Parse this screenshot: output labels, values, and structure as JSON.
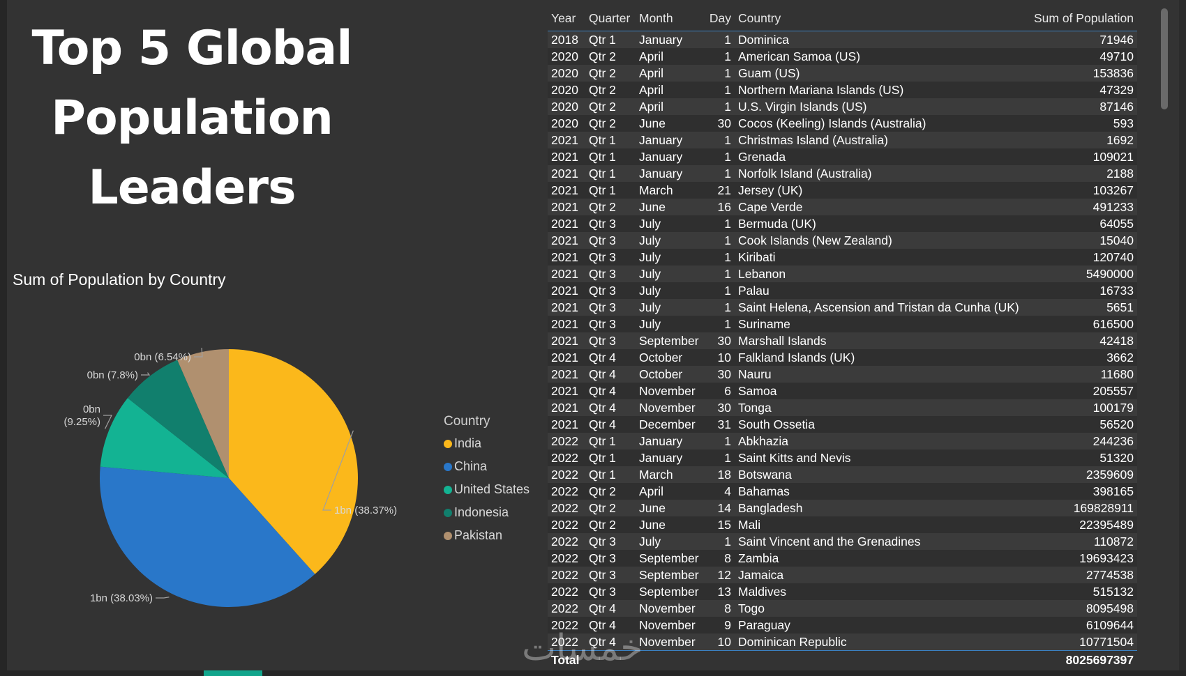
{
  "page_title": "Top 5 Global Population Leaders",
  "watermark": "خمسات",
  "chart_data": {
    "type": "pie",
    "title": "Sum of Population by Country",
    "legend_title": "Country",
    "legend_position": "right",
    "slices": [
      {
        "name": "India",
        "percent": 38.37,
        "label": "1bn (38.37%)",
        "color": "#fbb81b"
      },
      {
        "name": "China",
        "percent": 38.03,
        "label": "1bn (38.03%)",
        "color": "#2977c9"
      },
      {
        "name": "United States",
        "percent": 9.25,
        "label_line1": "0bn",
        "label_line2": "(9.25%)",
        "color": "#13b393"
      },
      {
        "name": "Indonesia",
        "percent": 7.8,
        "label": "0bn (7.8%)",
        "color": "#117f6d"
      },
      {
        "name": "Pakistan",
        "percent": 6.54,
        "label": "0bn (6.54%)",
        "color": "#b0906f"
      }
    ]
  },
  "table": {
    "headers": [
      "Year",
      "Quarter",
      "Month",
      "Day",
      "Country",
      "Sum of Population"
    ],
    "rows": [
      [
        "2018",
        "Qtr 1",
        "January",
        "1",
        "Dominica",
        "71946"
      ],
      [
        "2020",
        "Qtr 2",
        "April",
        "1",
        "American Samoa (US)",
        "49710"
      ],
      [
        "2020",
        "Qtr 2",
        "April",
        "1",
        "Guam (US)",
        "153836"
      ],
      [
        "2020",
        "Qtr 2",
        "April",
        "1",
        "Northern Mariana Islands (US)",
        "47329"
      ],
      [
        "2020",
        "Qtr 2",
        "April",
        "1",
        "U.S. Virgin Islands (US)",
        "87146"
      ],
      [
        "2020",
        "Qtr 2",
        "June",
        "30",
        "Cocos (Keeling) Islands (Australia)",
        "593"
      ],
      [
        "2021",
        "Qtr 1",
        "January",
        "1",
        "Christmas Island (Australia)",
        "1692"
      ],
      [
        "2021",
        "Qtr 1",
        "January",
        "1",
        "Grenada",
        "109021"
      ],
      [
        "2021",
        "Qtr 1",
        "January",
        "1",
        "Norfolk Island (Australia)",
        "2188"
      ],
      [
        "2021",
        "Qtr 1",
        "March",
        "21",
        "Jersey (UK)",
        "103267"
      ],
      [
        "2021",
        "Qtr 2",
        "June",
        "16",
        "Cape Verde",
        "491233"
      ],
      [
        "2021",
        "Qtr 3",
        "July",
        "1",
        "Bermuda (UK)",
        "64055"
      ],
      [
        "2021",
        "Qtr 3",
        "July",
        "1",
        "Cook Islands (New Zealand)",
        "15040"
      ],
      [
        "2021",
        "Qtr 3",
        "July",
        "1",
        "Kiribati",
        "120740"
      ],
      [
        "2021",
        "Qtr 3",
        "July",
        "1",
        "Lebanon",
        "5490000"
      ],
      [
        "2021",
        "Qtr 3",
        "July",
        "1",
        "Palau",
        "16733"
      ],
      [
        "2021",
        "Qtr 3",
        "July",
        "1",
        "Saint Helena, Ascension and Tristan da Cunha (UK)",
        "5651"
      ],
      [
        "2021",
        "Qtr 3",
        "July",
        "1",
        "Suriname",
        "616500"
      ],
      [
        "2021",
        "Qtr 3",
        "September",
        "30",
        "Marshall Islands",
        "42418"
      ],
      [
        "2021",
        "Qtr 4",
        "October",
        "10",
        "Falkland Islands (UK)",
        "3662"
      ],
      [
        "2021",
        "Qtr 4",
        "October",
        "30",
        "Nauru",
        "11680"
      ],
      [
        "2021",
        "Qtr 4",
        "November",
        "6",
        "Samoa",
        "205557"
      ],
      [
        "2021",
        "Qtr 4",
        "November",
        "30",
        "Tonga",
        "100179"
      ],
      [
        "2021",
        "Qtr 4",
        "December",
        "31",
        "South Ossetia",
        "56520"
      ],
      [
        "2022",
        "Qtr 1",
        "January",
        "1",
        "Abkhazia",
        "244236"
      ],
      [
        "2022",
        "Qtr 1",
        "January",
        "1",
        "Saint Kitts and Nevis",
        "51320"
      ],
      [
        "2022",
        "Qtr 1",
        "March",
        "18",
        "Botswana",
        "2359609"
      ],
      [
        "2022",
        "Qtr 2",
        "April",
        "4",
        "Bahamas",
        "398165"
      ],
      [
        "2022",
        "Qtr 2",
        "June",
        "14",
        "Bangladesh",
        "169828911"
      ],
      [
        "2022",
        "Qtr 2",
        "June",
        "15",
        "Mali",
        "22395489"
      ],
      [
        "2022",
        "Qtr 3",
        "July",
        "1",
        "Saint Vincent and the Grenadines",
        "110872"
      ],
      [
        "2022",
        "Qtr 3",
        "September",
        "8",
        "Zambia",
        "19693423"
      ],
      [
        "2022",
        "Qtr 3",
        "September",
        "12",
        "Jamaica",
        "2774538"
      ],
      [
        "2022",
        "Qtr 3",
        "September",
        "13",
        "Maldives",
        "515132"
      ],
      [
        "2022",
        "Qtr 4",
        "November",
        "8",
        "Togo",
        "8095498"
      ],
      [
        "2022",
        "Qtr 4",
        "November",
        "9",
        "Paraguay",
        "6109644"
      ],
      [
        "2022",
        "Qtr 4",
        "November",
        "10",
        "Dominican Republic",
        "10771504"
      ]
    ],
    "total_label": "Total",
    "total_value": "8025697397"
  }
}
